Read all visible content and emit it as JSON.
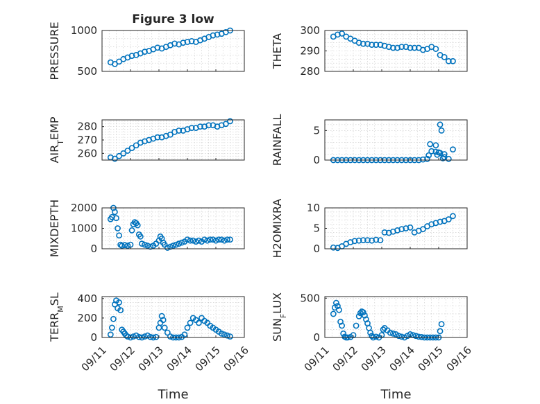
{
  "chart_data": [
    {
      "type": "scatter",
      "title": "Figure 3 low",
      "ylabel": "PRESSURE",
      "ylim": [
        500,
        1000
      ],
      "yticks": [
        500,
        1000
      ],
      "xlim": [
        0,
        5
      ],
      "xticks": [
        0,
        1,
        2,
        3,
        4,
        5
      ],
      "grid": true,
      "minor_grid": true,
      "show_xtick_labels": false,
      "series": [
        {
          "x": [
            0.3,
            0.45,
            0.6,
            0.75,
            0.9,
            1.05,
            1.2,
            1.35,
            1.5,
            1.65,
            1.8,
            1.95,
            2.1,
            2.25,
            2.4,
            2.55,
            2.7,
            2.85,
            3.0,
            3.15,
            3.3,
            3.45,
            3.6,
            3.75,
            3.9,
            4.05,
            4.2,
            4.35,
            4.5
          ],
          "y": [
            610,
            590,
            620,
            650,
            670,
            690,
            700,
            720,
            740,
            750,
            770,
            790,
            780,
            800,
            820,
            840,
            830,
            850,
            860,
            870,
            860,
            880,
            900,
            920,
            940,
            950,
            960,
            980,
            1000
          ]
        }
      ]
    },
    {
      "type": "scatter",
      "title": "",
      "ylabel": "THETA",
      "ylim": [
        280,
        300
      ],
      "yticks": [
        280,
        290,
        300
      ],
      "xlim": [
        0,
        5
      ],
      "xticks": [
        0,
        1,
        2,
        3,
        4,
        5
      ],
      "grid": true,
      "minor_grid": true,
      "show_xtick_labels": false,
      "series": [
        {
          "x": [
            0.3,
            0.45,
            0.6,
            0.75,
            0.9,
            1.05,
            1.2,
            1.35,
            1.5,
            1.65,
            1.8,
            1.95,
            2.1,
            2.25,
            2.4,
            2.55,
            2.7,
            2.85,
            3.0,
            3.15,
            3.3,
            3.45,
            3.6,
            3.75,
            3.9,
            4.05,
            4.2,
            4.35,
            4.5
          ],
          "y": [
            297,
            298,
            298.5,
            297,
            296,
            295,
            294,
            293.5,
            293.5,
            293,
            293,
            293,
            292.5,
            292,
            291.5,
            291.5,
            292,
            292,
            291.5,
            291.5,
            291.5,
            290.5,
            291,
            292,
            291,
            288,
            287,
            285,
            285
          ]
        }
      ]
    },
    {
      "type": "scatter",
      "title": "",
      "ylabel": "AIR_TEMP",
      "ylim": [
        255,
        285
      ],
      "yticks": [
        260,
        270,
        280
      ],
      "xlim": [
        0,
        5
      ],
      "xticks": [
        0,
        1,
        2,
        3,
        4,
        5
      ],
      "grid": true,
      "minor_grid": true,
      "show_xtick_labels": false,
      "series": [
        {
          "x": [
            0.3,
            0.45,
            0.6,
            0.75,
            0.9,
            1.05,
            1.2,
            1.35,
            1.5,
            1.65,
            1.8,
            1.95,
            2.1,
            2.25,
            2.4,
            2.55,
            2.7,
            2.85,
            3.0,
            3.15,
            3.3,
            3.45,
            3.6,
            3.75,
            3.9,
            4.05,
            4.2,
            4.35,
            4.5
          ],
          "y": [
            257,
            256,
            258,
            260,
            262,
            264,
            266,
            268,
            269,
            270,
            271,
            272,
            272,
            273,
            274,
            276,
            277,
            277,
            278,
            279,
            279,
            280,
            280,
            281,
            281,
            280,
            281,
            282,
            284
          ]
        }
      ]
    },
    {
      "type": "scatter",
      "title": "",
      "ylabel": "RAINFALL",
      "ylim": [
        0,
        6.8
      ],
      "yticks": [
        0,
        5
      ],
      "xlim": [
        0,
        5
      ],
      "xticks": [
        0,
        1,
        2,
        3,
        4,
        5
      ],
      "grid": true,
      "minor_grid": true,
      "show_xtick_labels": false,
      "series": [
        {
          "x": [
            0.3,
            0.45,
            0.6,
            0.75,
            0.9,
            1.05,
            1.2,
            1.35,
            1.5,
            1.65,
            1.8,
            1.95,
            2.1,
            2.25,
            2.4,
            2.55,
            2.7,
            2.85,
            3.0,
            3.15,
            3.3,
            3.45,
            3.6,
            3.75,
            3.9,
            4.05,
            4.2,
            4.35,
            4.5,
            3.65,
            3.7,
            3.9,
            3.95,
            4.0,
            4.05,
            4.1,
            4.15,
            4.2
          ],
          "y": [
            0,
            0,
            0,
            0,
            0,
            0,
            0,
            0,
            0,
            0,
            0,
            0,
            0,
            0,
            0,
            0,
            0,
            0,
            0,
            0,
            0,
            0.1,
            0.2,
            1.5,
            2.5,
            1.2,
            1.0,
            0.2,
            1.8,
            0.8,
            2.7,
            1.4,
            0.9,
            1.3,
            6.0,
            5.0,
            0.3,
            0.5
          ]
        }
      ]
    },
    {
      "type": "scatter",
      "title": "",
      "ylabel": "MIXDEPTH",
      "ylim": [
        0,
        2000
      ],
      "yticks": [
        0,
        1000,
        2000
      ],
      "xlim": [
        0,
        5
      ],
      "xticks": [
        0,
        1,
        2,
        3,
        4,
        5
      ],
      "grid": true,
      "minor_grid": true,
      "show_xtick_labels": false,
      "series": [
        {
          "x": [
            0.3,
            0.35,
            0.4,
            0.45,
            0.5,
            0.55,
            0.6,
            0.65,
            0.7,
            0.8,
            0.9,
            1.0,
            1.05,
            1.1,
            1.15,
            1.2,
            1.25,
            1.3,
            1.35,
            1.4,
            1.5,
            1.6,
            1.7,
            1.8,
            1.9,
            2.0,
            2.05,
            2.1,
            2.15,
            2.2,
            2.3,
            2.4,
            2.5,
            2.6,
            2.7,
            2.8,
            2.9,
            3.0,
            3.1,
            3.2,
            3.3,
            3.4,
            3.5,
            3.6,
            3.7,
            3.8,
            3.9,
            4.0,
            4.1,
            4.2,
            4.3,
            4.4,
            4.5
          ],
          "y": [
            1450,
            1550,
            2000,
            1800,
            1500,
            1000,
            650,
            200,
            150,
            180,
            150,
            200,
            900,
            1200,
            1300,
            1250,
            1150,
            700,
            600,
            250,
            200,
            150,
            100,
            150,
            250,
            400,
            600,
            500,
            300,
            200,
            50,
            100,
            150,
            200,
            250,
            300,
            350,
            450,
            400,
            400,
            350,
            400,
            350,
            450,
            400,
            450,
            450,
            400,
            450,
            450,
            400,
            450,
            450
          ]
        }
      ]
    },
    {
      "type": "scatter",
      "title": "",
      "ylabel": "H2OMIXRA",
      "ylim": [
        0,
        10
      ],
      "yticks": [
        0,
        5,
        10
      ],
      "xlim": [
        0,
        5
      ],
      "xticks": [
        0,
        1,
        2,
        3,
        4,
        5
      ],
      "grid": true,
      "minor_grid": true,
      "show_xtick_labels": false,
      "series": [
        {
          "x": [
            0.3,
            0.45,
            0.6,
            0.75,
            0.9,
            1.05,
            1.2,
            1.35,
            1.5,
            1.65,
            1.8,
            1.95,
            2.1,
            2.25,
            2.4,
            2.55,
            2.7,
            2.85,
            3.0,
            3.15,
            3.3,
            3.45,
            3.6,
            3.75,
            3.9,
            4.05,
            4.2,
            4.35,
            4.5
          ],
          "y": [
            0.3,
            0.2,
            0.6,
            1.2,
            1.6,
            1.9,
            2.0,
            2.1,
            2.1,
            2.0,
            2.2,
            2.1,
            4.0,
            3.9,
            4.2,
            4.5,
            4.8,
            5.0,
            5.2,
            4.0,
            4.4,
            4.8,
            5.5,
            6.0,
            6.3,
            6.6,
            6.8,
            7.2,
            8.0
          ]
        }
      ]
    },
    {
      "type": "scatter",
      "title": "",
      "ylabel": "TERR_MSL",
      "ylim": [
        0,
        420
      ],
      "yticks": [
        0,
        200,
        400
      ],
      "xlim": [
        0,
        5
      ],
      "xticks": [
        0,
        1,
        2,
        3,
        4,
        5
      ],
      "xtick_labels": [
        "09/11",
        "09/12",
        "09/13",
        "09/14",
        "09/15",
        "09/16"
      ],
      "xlabel": "Time",
      "grid": true,
      "minor_grid": true,
      "show_xtick_labels": true,
      "series": [
        {
          "x": [
            0.3,
            0.35,
            0.4,
            0.45,
            0.5,
            0.55,
            0.6,
            0.65,
            0.7,
            0.75,
            0.8,
            0.85,
            0.9,
            1.0,
            1.1,
            1.2,
            1.3,
            1.4,
            1.5,
            1.6,
            1.7,
            1.8,
            1.9,
            2.0,
            2.05,
            2.1,
            2.15,
            2.2,
            2.3,
            2.4,
            2.5,
            2.6,
            2.7,
            2.8,
            2.9,
            3.0,
            3.1,
            3.2,
            3.3,
            3.4,
            3.5,
            3.6,
            3.7,
            3.8,
            3.9,
            4.0,
            4.1,
            4.2,
            4.3,
            4.4,
            4.5
          ],
          "y": [
            30,
            100,
            190,
            340,
            380,
            300,
            360,
            280,
            80,
            60,
            40,
            20,
            10,
            0,
            10,
            20,
            5,
            0,
            10,
            20,
            5,
            0,
            5,
            100,
            150,
            220,
            180,
            100,
            50,
            10,
            0,
            0,
            0,
            5,
            30,
            100,
            150,
            200,
            180,
            150,
            200,
            170,
            150,
            120,
            100,
            80,
            60,
            40,
            30,
            20,
            10
          ]
        }
      ]
    },
    {
      "type": "scatter",
      "title": "",
      "ylabel": "SUN_FLUX",
      "ylim": [
        0,
        520
      ],
      "yticks": [
        0,
        500
      ],
      "xlim": [
        0,
        5
      ],
      "xticks": [
        0,
        1,
        2,
        3,
        4,
        5
      ],
      "xtick_labels": [
        "09/11",
        "09/12",
        "09/13",
        "09/14",
        "09/15",
        "09/16"
      ],
      "xlabel": "Time",
      "grid": true,
      "minor_grid": true,
      "show_xtick_labels": true,
      "series": [
        {
          "x": [
            0.3,
            0.35,
            0.4,
            0.45,
            0.5,
            0.55,
            0.6,
            0.65,
            0.7,
            0.75,
            0.8,
            0.9,
            1.0,
            1.1,
            1.2,
            1.25,
            1.3,
            1.35,
            1.4,
            1.45,
            1.5,
            1.55,
            1.6,
            1.65,
            1.7,
            1.8,
            1.9,
            2.0,
            2.05,
            2.1,
            2.2,
            2.3,
            2.4,
            2.5,
            2.6,
            2.7,
            2.8,
            2.9,
            3.0,
            3.1,
            3.2,
            3.3,
            3.4,
            3.5,
            3.6,
            3.7,
            3.8,
            3.9,
            4.0,
            4.05,
            4.1
          ],
          "y": [
            300,
            380,
            440,
            400,
            350,
            200,
            150,
            50,
            10,
            0,
            0,
            5,
            30,
            150,
            270,
            310,
            330,
            320,
            280,
            230,
            180,
            120,
            60,
            20,
            0,
            10,
            0,
            30,
            100,
            120,
            90,
            60,
            50,
            40,
            20,
            10,
            0,
            20,
            40,
            30,
            20,
            10,
            5,
            0,
            0,
            0,
            0,
            0,
            0,
            80,
            170
          ]
        }
      ]
    }
  ]
}
